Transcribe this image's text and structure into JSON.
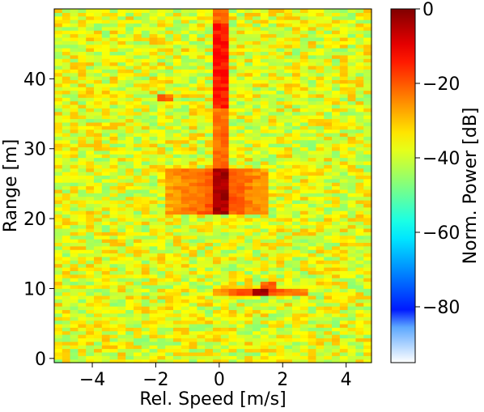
{
  "chart_data": {
    "type": "heatmap",
    "title": "",
    "xlabel": "Rel. Speed [m/s]",
    "ylabel": "Range [m]",
    "colorbar_label": "Norm. Power [dB]",
    "xlim": [
      -5.2,
      4.8
    ],
    "ylim": [
      -0.6,
      50
    ],
    "x_ticks": [
      -4,
      -2,
      0,
      2,
      4
    ],
    "x_tick_labels": [
      "−4",
      "−2",
      "0",
      "2",
      "4"
    ],
    "y_ticks": [
      0,
      10,
      20,
      30,
      40
    ],
    "y_tick_labels": [
      "0",
      "10",
      "20",
      "30",
      "40"
    ],
    "colorbar_range": [
      -95,
      0
    ],
    "colorbar_ticks": [
      0,
      -20,
      -40,
      -60,
      -80
    ],
    "colorbar_tick_labels": [
      "0",
      "−20",
      "−40",
      "−60",
      "−80"
    ],
    "colormap": "jet",
    "grid": false,
    "background_level_db": -38,
    "speed_bins": 40,
    "range_bins": 100,
    "hotspots": [
      {
        "speed": 0.0,
        "range_from": 20.5,
        "range_to": 27.0,
        "power_db": -4
      },
      {
        "speed": 0.0,
        "range_from": 27.0,
        "range_to": 50.0,
        "power_db": -22
      },
      {
        "speed": 0.0,
        "range_from": 36.0,
        "range_to": 48.0,
        "power_db": -14
      },
      {
        "speed": 1.3,
        "range_from": 9.0,
        "range_to": 10.0,
        "power_db": -3
      },
      {
        "speed": 1.5,
        "range_from": 10.0,
        "range_to": 11.0,
        "power_db": -20
      },
      {
        "speed": -1.8,
        "range_from": 37.0,
        "range_to": 38.0,
        "power_db": -22
      }
    ]
  }
}
